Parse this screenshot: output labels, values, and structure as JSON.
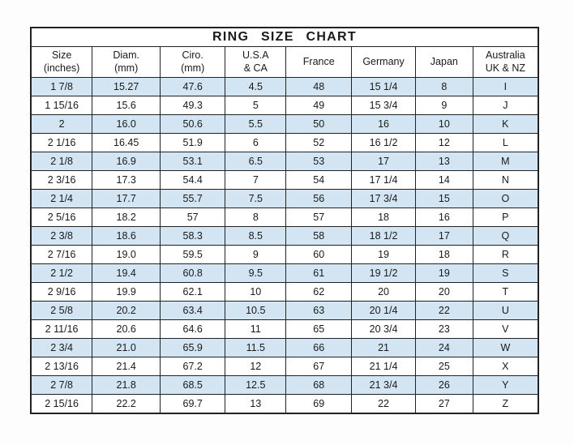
{
  "chart_data": {
    "type": "table",
    "title": "RING SIZE CHART",
    "columns": [
      "Size\n(inches)",
      "Diam.\n(mm)",
      "Ciro.\n(mm)",
      "U.S.A\n& CA",
      "France",
      "Germany",
      "Japan",
      "Australia\nUK & NZ"
    ],
    "rows": [
      [
        "1 7/8",
        "15.27",
        "47.6",
        "4.5",
        "48",
        "15 1/4",
        "8",
        "I"
      ],
      [
        "1 15/16",
        "15.6",
        "49.3",
        "5",
        "49",
        "15 3/4",
        "9",
        "J"
      ],
      [
        "2",
        "16.0",
        "50.6",
        "5.5",
        "50",
        "16",
        "10",
        "K"
      ],
      [
        "2 1/16",
        "16.45",
        "51.9",
        "6",
        "52",
        "16 1/2",
        "12",
        "L"
      ],
      [
        "2 1/8",
        "16.9",
        "53.1",
        "6.5",
        "53",
        "17",
        "13",
        "M"
      ],
      [
        "2 3/16",
        "17.3",
        "54.4",
        "7",
        "54",
        "17 1/4",
        "14",
        "N"
      ],
      [
        "2 1/4",
        "17.7",
        "55.7",
        "7.5",
        "56",
        "17 3/4",
        "15",
        "O"
      ],
      [
        "2 5/16",
        "18.2",
        "57",
        "8",
        "57",
        "18",
        "16",
        "P"
      ],
      [
        "2 3/8",
        "18.6",
        "58.3",
        "8.5",
        "58",
        "18 1/2",
        "17",
        "Q"
      ],
      [
        "2 7/16",
        "19.0",
        "59.5",
        "9",
        "60",
        "19",
        "18",
        "R"
      ],
      [
        "2 1/2",
        "19.4",
        "60.8",
        "9.5",
        "61",
        "19 1/2",
        "19",
        "S"
      ],
      [
        "2 9/16",
        "19.9",
        "62.1",
        "10",
        "62",
        "20",
        "20",
        "T"
      ],
      [
        "2 5/8",
        "20.2",
        "63.4",
        "10.5",
        "63",
        "20 1/4",
        "22",
        "U"
      ],
      [
        "2 11/16",
        "20.6",
        "64.6",
        "11",
        "65",
        "20 3/4",
        "23",
        "V"
      ],
      [
        "2 3/4",
        "21.0",
        "65.9",
        "11.5",
        "66",
        "21",
        "24",
        "W"
      ],
      [
        "2 13/16",
        "21.4",
        "67.2",
        "12",
        "67",
        "21 1/4",
        "25",
        "X"
      ],
      [
        "2 7/8",
        "21.8",
        "68.5",
        "12.5",
        "68",
        "21 3/4",
        "26",
        "Y"
      ],
      [
        "2 15/16",
        "22.2",
        "69.7",
        "13",
        "69",
        "22",
        "27",
        "Z"
      ]
    ],
    "layout_hints": {
      "row_striping": "odd rows highlighted blue",
      "grid": true
    }
  },
  "colors": {
    "row_alt_bg": "#d3e5f2",
    "row_bg": "#ffffff",
    "border": "#222222",
    "text": "#1a1a1a"
  }
}
